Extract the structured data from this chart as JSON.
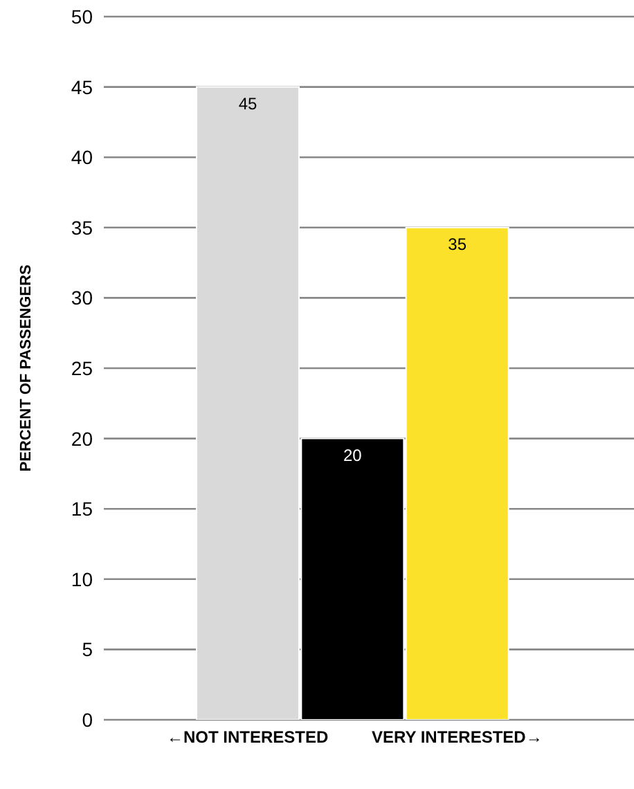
{
  "chart_data": {
    "type": "bar",
    "ylabel": "PERCENT OF PASSENGERS",
    "categories": [
      "←NOT INTERESTED",
      null,
      "VERY INTERESTED→"
    ],
    "values": [
      45,
      20,
      35
    ],
    "colors": [
      "#d9d9d9",
      "#000000",
      "#fbe12a"
    ],
    "ylim": [
      0,
      50
    ],
    "yticks": [
      0,
      5,
      10,
      15,
      20,
      25,
      30,
      35,
      40,
      45,
      50
    ],
    "grid": "y",
    "data_labels": true
  }
}
